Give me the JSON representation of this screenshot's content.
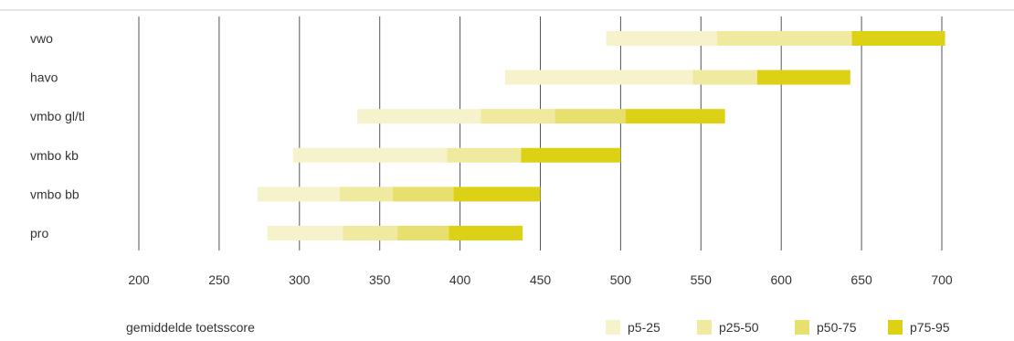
{
  "chart_data": {
    "type": "bar",
    "subtype": "stacked-horizontal-range",
    "categories": [
      "vwo",
      "havo",
      "vmbo gl/tl",
      "vmbo kb",
      "vmbo bb",
      "pro"
    ],
    "series": [
      {
        "name": "p5-25",
        "color": "#f6f3cc",
        "ranges": [
          [
            491,
            560
          ],
          [
            428,
            545
          ],
          [
            336,
            413
          ],
          [
            296,
            392
          ],
          [
            274,
            325
          ],
          [
            280,
            327
          ]
        ]
      },
      {
        "name": "p25-50",
        "color": "#efea9f",
        "ranges": [
          [
            560,
            644
          ],
          [
            545,
            585
          ],
          [
            413,
            459
          ],
          [
            392,
            438
          ],
          [
            325,
            358
          ],
          [
            327,
            361
          ]
        ]
      },
      {
        "name": "p50-75",
        "color": "#e8e06e",
        "ranges": [
          [
            644,
            644
          ],
          [
            585,
            585
          ],
          [
            459,
            503
          ],
          [
            438,
            438
          ],
          [
            358,
            396
          ],
          [
            361,
            393
          ]
        ]
      },
      {
        "name": "p75-95",
        "color": "#ddd116",
        "ranges": [
          [
            644,
            702
          ],
          [
            585,
            643
          ],
          [
            503,
            565
          ],
          [
            438,
            500
          ],
          [
            396,
            450
          ],
          [
            393,
            439
          ]
        ]
      }
    ],
    "xlim": [
      200,
      700
    ],
    "xticks": [
      "200",
      "250",
      "300",
      "350",
      "400",
      "450",
      "500",
      "550",
      "600",
      "650",
      "700"
    ],
    "xlabel": "gemiddelde toetsscore",
    "grid": "vertical"
  }
}
